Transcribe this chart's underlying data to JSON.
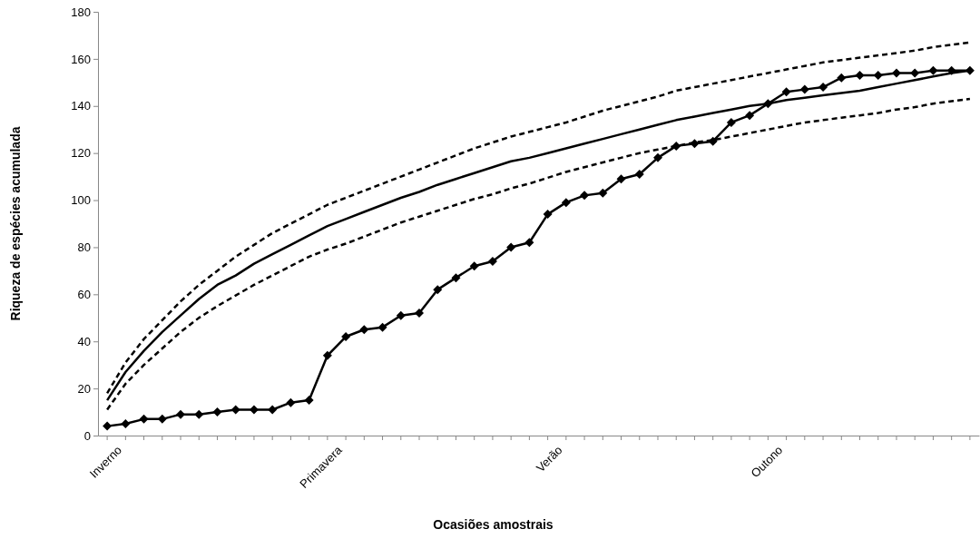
{
  "chart_data": {
    "type": "line",
    "xlabel": "Ocasiões amostrais",
    "ylabel": "Riqueza de espécies acumulada",
    "categories": [
      "Inverno",
      null,
      null,
      null,
      null,
      null,
      null,
      null,
      null,
      null,
      null,
      null,
      "Primavera",
      null,
      null,
      null,
      null,
      null,
      null,
      null,
      null,
      null,
      null,
      null,
      "Verão",
      null,
      null,
      null,
      null,
      null,
      null,
      null,
      null,
      null,
      null,
      null,
      "Outono",
      null,
      null,
      null,
      null,
      null,
      null,
      null,
      null,
      null,
      null,
      null
    ],
    "ylim": [
      0,
      180
    ],
    "yticks": [
      0,
      20,
      40,
      60,
      80,
      100,
      120,
      140,
      160,
      180
    ],
    "series": [
      {
        "color": "#000000",
        "line_style": "dashed",
        "marker": "none",
        "values": [
          18,
          31,
          41,
          49,
          57,
          64,
          70,
          76,
          81,
          86,
          90,
          94,
          98,
          101,
          104,
          107,
          110,
          113,
          116,
          119,
          122,
          124.5,
          127,
          129,
          131,
          133,
          135.5,
          138,
          140,
          142,
          144,
          146.5,
          148,
          149.5,
          151,
          152.5,
          154,
          155.5,
          157,
          158.5,
          159.5,
          160.5,
          161.5,
          162.5,
          163.5,
          165,
          166,
          167
        ]
      },
      {
        "color": "#000000",
        "line_style": "dashed",
        "marker": "none",
        "values": [
          11,
          22,
          30,
          37,
          44,
          50,
          55,
          59.5,
          64,
          68,
          72,
          76,
          79,
          81.5,
          84.5,
          87.5,
          90.5,
          93,
          95.5,
          98,
          100.5,
          102.5,
          105,
          107,
          109.5,
          112,
          114,
          116,
          118,
          120,
          121.5,
          123,
          124.5,
          125.5,
          127,
          128.5,
          130,
          131.5,
          133,
          134,
          135,
          136,
          137,
          138.5,
          139.5,
          141,
          142,
          143
        ]
      },
      {
        "color": "#000000",
        "line_style": "solid",
        "marker": "none",
        "values": [
          15,
          27,
          36,
          44,
          51,
          58,
          64,
          68,
          73,
          77,
          81,
          85,
          89,
          92,
          95,
          98,
          101,
          103.5,
          106.5,
          109,
          111.5,
          114,
          116.5,
          118,
          120,
          122,
          124,
          126,
          128,
          130,
          132,
          134,
          135.5,
          137,
          138.5,
          140,
          141,
          142.5,
          143.5,
          144.5,
          145.5,
          146.5,
          148,
          149.5,
          151,
          152.5,
          154,
          155
        ]
      },
      {
        "color": "#000000",
        "line_style": "solid",
        "marker": "diamond",
        "values": [
          4,
          5,
          7,
          7,
          9,
          9,
          10,
          11,
          11,
          11,
          14,
          15,
          34,
          42,
          45,
          46,
          51,
          52,
          62,
          67,
          72,
          74,
          80,
          82,
          94,
          99,
          102,
          103,
          109,
          111,
          118,
          123,
          124,
          125,
          133,
          136,
          141,
          146,
          147,
          148,
          152,
          153,
          153,
          154,
          154,
          155,
          155,
          155
        ]
      }
    ]
  }
}
